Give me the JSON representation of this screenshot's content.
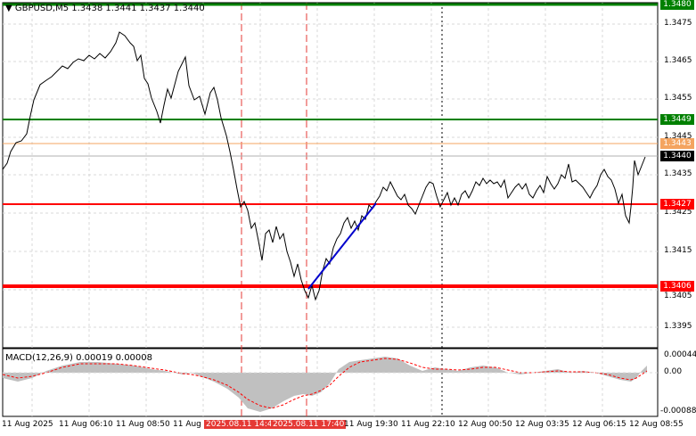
{
  "header": {
    "symbol": "GBPUSD,M5",
    "ohlc": "1.3438 1.3441 1.3437 1.3440",
    "arrow": "▼"
  },
  "price_axis": {
    "ticks": [
      "1.3475",
      "1.3465",
      "1.3455",
      "1.3445",
      "1.3435",
      "1.3425",
      "1.3415",
      "1.3405",
      "1.3395"
    ]
  },
  "levels": {
    "l1480": {
      "label": "1.3480",
      "color": "#008000"
    },
    "l1449": {
      "label": "1.3449",
      "color": "#008000"
    },
    "l1443": {
      "label": "1.3443",
      "color": "#f4a460"
    },
    "l1440": {
      "label": "1.3440",
      "color": "#000000"
    },
    "l1427": {
      "label": "1.3427",
      "color": "#ff0000"
    },
    "l1406": {
      "label": "1.3406",
      "color": "#ff0000"
    }
  },
  "macd": {
    "title": "MACD(12,26,9) 0.00019 0.00008",
    "ticks": [
      "0.00044",
      "0.00",
      "-0.00088"
    ]
  },
  "time_axis": {
    "labels": [
      "11 Aug 2025",
      "11 Aug 06:10",
      "11 Aug 08:50",
      "11 Aug 1",
      "2025.08.11 14:4",
      "2025.08.11 17:40",
      "11 Aug 19:30",
      "11 Aug 22:10",
      "12 Aug 00:50",
      "12 Aug 03:35",
      "12 Aug 06:15",
      "12 Aug 08:55"
    ]
  },
  "colors": {
    "support_green": "#008000",
    "resistance_red": "#ff0000",
    "trend_blue": "#0000cc",
    "macd_hist": "#c0c0c0",
    "macd_signal": "#ff0000"
  }
}
